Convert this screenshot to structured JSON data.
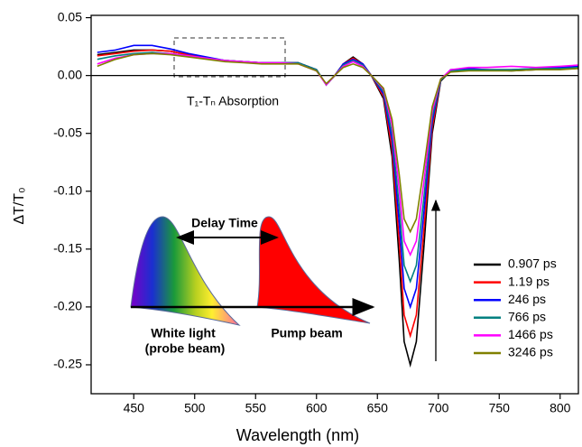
{
  "chart_data": {
    "type": "line",
    "x_label": "Wavelength (nm)",
    "y_label": "ΔT/T₀",
    "annotations": [
      "T₁-Tₙ Absorption",
      "Delay Time",
      "White light",
      "(probe beam)",
      "Pump beam"
    ],
    "xlim": [
      415,
      815
    ],
    "ylim": [
      -0.275,
      0.052
    ],
    "xticks": [
      450,
      500,
      550,
      600,
      650,
      700,
      750,
      800
    ],
    "yticks": [
      {
        "value": 0.05,
        "label": "0.05"
      },
      {
        "value": 0,
        "label": "0.00"
      },
      {
        "value": -0.05,
        "label": "-0.05"
      },
      {
        "value": -0.1,
        "label": "-0.10"
      },
      {
        "value": -0.15,
        "label": "-0.15"
      },
      {
        "value": -0.2,
        "label": "-0.20"
      },
      {
        "value": -0.25,
        "label": "-0.25"
      }
    ],
    "legend": "lower right",
    "x": [
      420,
      435,
      450,
      465,
      480,
      495,
      510,
      525,
      540,
      555,
      570,
      585,
      600,
      608,
      615,
      622,
      630,
      638,
      645,
      655,
      662,
      668,
      672,
      677,
      682,
      688,
      695,
      702,
      710,
      725,
      740,
      760,
      780,
      800,
      815
    ],
    "series": [
      {
        "name": "0.907 ps",
        "color": "#000000",
        "values": [
          0.018,
          0.02,
          0.022,
          0.022,
          0.021,
          0.018,
          0.015,
          0.013,
          0.012,
          0.011,
          0.011,
          0.011,
          0.005,
          -0.008,
          0.0,
          0.01,
          0.016,
          0.01,
          0.0,
          -0.02,
          -0.07,
          -0.16,
          -0.23,
          -0.25,
          -0.23,
          -0.15,
          -0.05,
          -0.005,
          0.004,
          0.005,
          0.005,
          0.004,
          0.005,
          0.006,
          0.007
        ]
      },
      {
        "name": "1.19 ps",
        "color": "#ff0000",
        "values": [
          0.017,
          0.019,
          0.021,
          0.022,
          0.021,
          0.018,
          0.015,
          0.013,
          0.012,
          0.011,
          0.011,
          0.011,
          0.005,
          -0.008,
          0.0,
          0.01,
          0.015,
          0.01,
          0.0,
          -0.018,
          -0.063,
          -0.144,
          -0.207,
          -0.225,
          -0.207,
          -0.135,
          -0.045,
          -0.004,
          0.004,
          0.005,
          0.005,
          0.005,
          0.005,
          0.006,
          0.007
        ]
      },
      {
        "name": "246 ps",
        "color": "#0000ff",
        "values": [
          0.02,
          0.022,
          0.026,
          0.026,
          0.023,
          0.019,
          0.016,
          0.013,
          0.012,
          0.011,
          0.011,
          0.011,
          0.005,
          -0.008,
          0.0,
          0.01,
          0.014,
          0.01,
          0.0,
          -0.016,
          -0.056,
          -0.128,
          -0.184,
          -0.2,
          -0.184,
          -0.12,
          -0.04,
          -0.004,
          0.005,
          0.006,
          0.005,
          0.005,
          0.006,
          0.007,
          0.008
        ]
      },
      {
        "name": "766 ps",
        "color": "#008080",
        "values": [
          0.014,
          0.017,
          0.019,
          0.02,
          0.019,
          0.017,
          0.015,
          0.013,
          0.012,
          0.011,
          0.011,
          0.011,
          0.005,
          -0.008,
          0.0,
          0.009,
          0.013,
          0.009,
          0.0,
          -0.014,
          -0.05,
          -0.114,
          -0.164,
          -0.178,
          -0.164,
          -0.107,
          -0.036,
          -0.004,
          0.004,
          0.005,
          0.005,
          0.005,
          0.006,
          0.006,
          0.007
        ]
      },
      {
        "name": "1466 ps",
        "color": "#ff00ff",
        "values": [
          0.01,
          0.015,
          0.018,
          0.019,
          0.019,
          0.017,
          0.015,
          0.013,
          0.012,
          0.011,
          0.011,
          0.01,
          0.004,
          -0.008,
          0.0,
          0.008,
          0.012,
          0.008,
          0.0,
          -0.012,
          -0.043,
          -0.099,
          -0.143,
          -0.155,
          -0.143,
          -0.093,
          -0.031,
          -0.003,
          0.005,
          0.007,
          0.007,
          0.008,
          0.007,
          0.008,
          0.009
        ]
      },
      {
        "name": "3246 ps",
        "color": "#808000",
        "values": [
          0.008,
          0.014,
          0.018,
          0.019,
          0.018,
          0.016,
          0.014,
          0.012,
          0.011,
          0.01,
          0.01,
          0.01,
          0.004,
          -0.007,
          0.0,
          0.007,
          0.01,
          0.007,
          0.0,
          -0.011,
          -0.038,
          -0.086,
          -0.124,
          -0.135,
          -0.124,
          -0.081,
          -0.027,
          -0.003,
          0.003,
          0.004,
          0.004,
          0.004,
          0.005,
          0.005,
          0.006
        ]
      }
    ]
  }
}
